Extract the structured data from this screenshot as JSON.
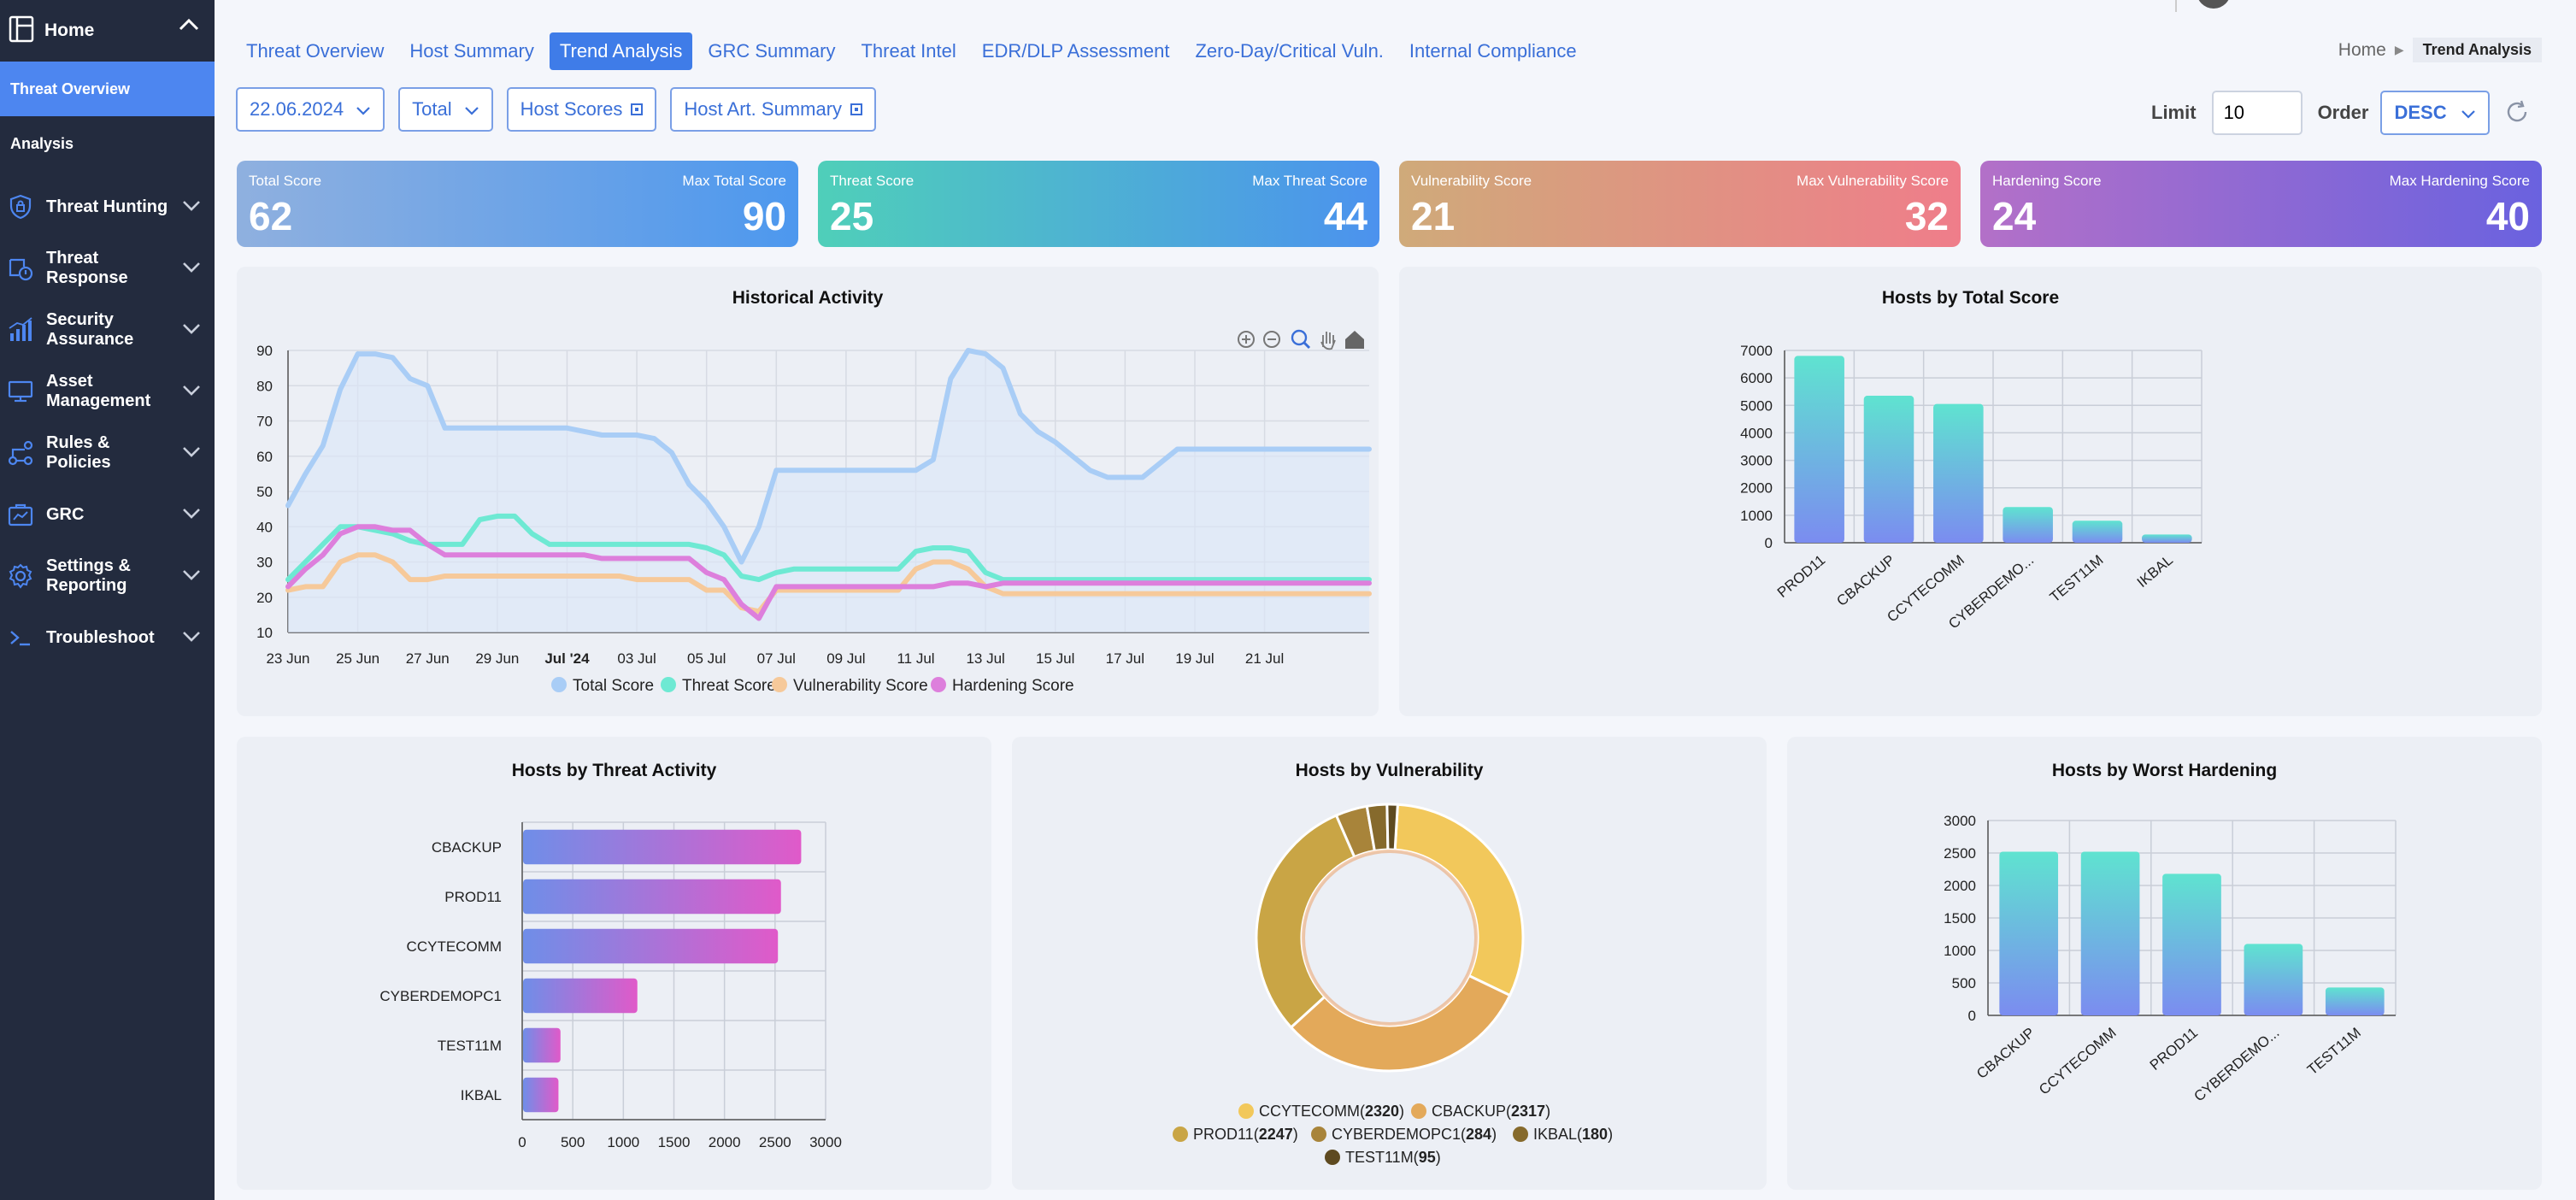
{
  "sidebar": {
    "home": "Home",
    "sub_items": [
      "Threat Overview",
      "Analysis"
    ],
    "items": [
      {
        "label": "Threat Hunting",
        "icon": "shield-lock-icon"
      },
      {
        "label": "Threat Response",
        "icon": "response-icon"
      },
      {
        "label": "Security Assurance",
        "icon": "bar-chart-icon"
      },
      {
        "label": "Asset Management",
        "icon": "monitor-icon"
      },
      {
        "label": "Rules & Policies",
        "icon": "workflow-icon"
      },
      {
        "label": "GRC",
        "icon": "grc-icon"
      },
      {
        "label": "Settings & Reporting",
        "icon": "gear-icon"
      },
      {
        "label": "Troubleshoot",
        "icon": "terminal-icon"
      }
    ]
  },
  "nav": {
    "tabs": [
      "Threat Overview",
      "Host Summary",
      "Trend Analysis",
      "GRC Summary",
      "Threat Intel",
      "EDR/DLP Assessment",
      "Zero-Day/Critical Vuln.",
      "Internal Compliance"
    ],
    "active_tab": "Trend Analysis"
  },
  "breadcrumb": {
    "home": "Home",
    "current": "Trend Analysis"
  },
  "filters": {
    "date": "22.06.2024",
    "scope": "Total",
    "host_scores": "Host Scores",
    "host_art": "Host Art. Summary"
  },
  "limit": {
    "label": "Limit",
    "value": "10"
  },
  "order": {
    "label": "Order",
    "value": "DESC"
  },
  "cards": [
    {
      "title": "Total Score",
      "max_title": "Max Total Score",
      "value": "62",
      "max_value": "90"
    },
    {
      "title": "Threat Score",
      "max_title": "Max Threat Score",
      "value": "25",
      "max_value": "44"
    },
    {
      "title": "Vulnerability Score",
      "max_title": "Max Vulnerability Score",
      "value": "21",
      "max_value": "32"
    },
    {
      "title": "Hardening Score",
      "max_title": "Max Hardening Score",
      "value": "24",
      "max_value": "40"
    }
  ],
  "colors": {
    "total": "#a9cdf6",
    "threat": "#6ee9d3",
    "vuln": "#f6c99a",
    "hard": "#dd7fdc"
  },
  "chart_data": [
    {
      "type": "line",
      "title": "Historical Activity",
      "ylim": [
        10,
        90
      ],
      "yticks": [
        10,
        20,
        30,
        40,
        50,
        60,
        70,
        80,
        90
      ],
      "xticks": [
        "23 Jun",
        "25 Jun",
        "27 Jun",
        "29 Jun",
        "Jul '24",
        "03 Jul",
        "05 Jul",
        "07 Jul",
        "09 Jul",
        "11 Jul",
        "13 Jul",
        "15 Jul",
        "17 Jul",
        "19 Jul",
        "21 Jul"
      ],
      "x_days": [
        0,
        0.5,
        1,
        1.5,
        2,
        2.5,
        3,
        3.5,
        4,
        4.5,
        5,
        5.5,
        6,
        6.5,
        7,
        7.5,
        8,
        8.5,
        9,
        9.5,
        10,
        10.5,
        11,
        11.5,
        12,
        12.5,
        13,
        13.5,
        14,
        14.5,
        15,
        15.5,
        16,
        16.5,
        17,
        17.5,
        18,
        18.5,
        19,
        19.5,
        20,
        20.5,
        21,
        21.5,
        22,
        22.5,
        23,
        23.5,
        24,
        24.5,
        25,
        25.5,
        26,
        26.5,
        27,
        27.5,
        28,
        28.5,
        29,
        29.5,
        30,
        30.5,
        31
      ],
      "series": [
        {
          "name": "Total Score",
          "color": "#a9cdf6",
          "values": [
            46,
            55,
            63,
            79,
            89,
            89,
            88,
            82,
            80,
            68,
            68,
            68,
            68,
            68,
            68,
            68,
            68,
            67,
            66,
            66,
            66,
            65,
            61,
            52,
            47,
            40,
            30,
            40,
            56,
            56,
            56,
            56,
            56,
            56,
            56,
            56,
            56,
            59,
            82,
            90,
            89,
            85,
            72,
            67,
            64,
            60,
            56,
            54,
            54,
            54,
            58,
            62,
            62,
            62,
            62,
            62,
            62,
            62,
            62,
            62,
            62,
            62,
            62
          ]
        },
        {
          "name": "Threat Score",
          "color": "#6ee9d3",
          "values": [
            25,
            30,
            35,
            40,
            40,
            39,
            38,
            36,
            35,
            35,
            35,
            42,
            43,
            43,
            38,
            35,
            35,
            35,
            35,
            35,
            35,
            35,
            35,
            35,
            34,
            32,
            26,
            25,
            27,
            28,
            28,
            28,
            28,
            28,
            28,
            28,
            33,
            34,
            34,
            33,
            27,
            25,
            25,
            25,
            25,
            25,
            25,
            25,
            25,
            25,
            25,
            25,
            25,
            25,
            25,
            25,
            25,
            25,
            25,
            25,
            25,
            25,
            25
          ]
        },
        {
          "name": "Vulnerability Score",
          "color": "#f6c99a",
          "values": [
            22,
            23,
            23,
            30,
            32,
            32,
            30,
            25,
            25,
            26,
            26,
            26,
            26,
            26,
            26,
            26,
            26,
            26,
            26,
            26,
            25,
            25,
            25,
            25,
            22,
            22,
            17,
            16,
            22,
            22,
            22,
            22,
            22,
            22,
            22,
            22,
            28,
            30,
            30,
            28,
            23,
            21,
            21,
            21,
            21,
            21,
            21,
            21,
            21,
            21,
            21,
            21,
            21,
            21,
            21,
            21,
            21,
            21,
            21,
            21,
            21,
            21,
            21
          ]
        },
        {
          "name": "Hardening Score",
          "color": "#dd7fdc",
          "values": [
            23,
            28,
            32,
            38,
            40,
            40,
            39,
            39,
            35,
            32,
            32,
            32,
            32,
            32,
            32,
            32,
            32,
            32,
            31,
            31,
            31,
            31,
            31,
            31,
            27,
            25,
            18,
            14,
            23,
            23,
            23,
            23,
            23,
            23,
            23,
            23,
            23,
            23,
            24,
            24,
            23,
            24,
            24,
            24,
            24,
            24,
            24,
            24,
            24,
            24,
            24,
            24,
            24,
            24,
            24,
            24,
            24,
            24,
            24,
            24,
            24,
            24,
            24
          ]
        }
      ]
    },
    {
      "type": "bar",
      "title": "Hosts by Total Score",
      "categories": [
        "PROD11",
        "CBACKUP",
        "CCYTECOMM",
        "CYBERDEMO...",
        "TEST11M",
        "IKBAL"
      ],
      "values": [
        6800,
        5350,
        5050,
        1300,
        800,
        300
      ],
      "ylim": [
        0,
        7000
      ],
      "yticks": [
        0,
        1000,
        2000,
        3000,
        4000,
        5000,
        6000,
        7000
      ]
    },
    {
      "type": "bar",
      "orientation": "horizontal",
      "title": "Hosts by Threat Activity",
      "categories": [
        "CBACKUP",
        "PROD11",
        "CCYTECOMM",
        "CYBERDEMOPC1",
        "TEST11M",
        "IKBAL"
      ],
      "values": [
        2750,
        2550,
        2520,
        1130,
        370,
        350
      ],
      "xlim": [
        0,
        3000
      ],
      "xticks": [
        0,
        500,
        1000,
        1500,
        2000,
        2500,
        3000
      ]
    },
    {
      "type": "pie",
      "title": "Hosts by Vulnerability",
      "slices": [
        {
          "name": "CCYTECOMM",
          "value": 2320,
          "label": "2320",
          "color": "#f2c85b"
        },
        {
          "name": "CBACKUP",
          "value": 2317,
          "label": "2317",
          "color": "#e3a95a"
        },
        {
          "name": "PROD11",
          "value": 2247,
          "label": "2247",
          "color": "#c9a545"
        },
        {
          "name": "CYBERDEMOPC1",
          "value": 284,
          "label": "284",
          "color": "#a8843a"
        },
        {
          "name": "IKBAL",
          "value": 180,
          "label": "180",
          "color": "#866a2c"
        },
        {
          "name": "TEST11M",
          "value": 95,
          "label": "95",
          "color": "#5e4a20"
        }
      ]
    },
    {
      "type": "bar",
      "title": "Hosts by Worst Hardening",
      "categories": [
        "CBACKUP",
        "CCYTECOMM",
        "PROD11",
        "CYBERDEMO...",
        "TEST11M"
      ],
      "values": [
        2520,
        2520,
        2180,
        1100,
        430
      ],
      "ylim": [
        0,
        3000
      ],
      "yticks": [
        0,
        500,
        1000,
        1500,
        2000,
        2500,
        3000
      ]
    }
  ]
}
